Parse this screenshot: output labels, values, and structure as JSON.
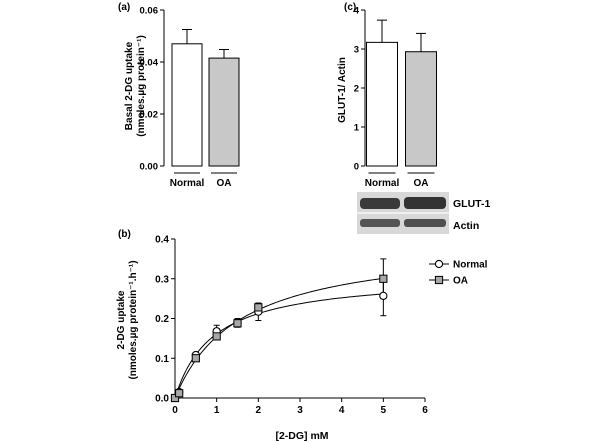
{
  "chart_data": [
    {
      "panel": "(a)",
      "type": "bar",
      "ylabel_line1": "Basal 2-DG uptake",
      "ylabel_line2": "(nmoles.µg protein⁻¹)",
      "yticks": [
        "0.00",
        "0.02",
        "0.04",
        "0.06"
      ],
      "ylim": [
        0,
        0.06
      ],
      "categories": [
        "Normal",
        "OA"
      ],
      "values": [
        0.047,
        0.0415
      ],
      "errors": [
        0.0055,
        0.0033
      ],
      "colors": [
        "#ffffff",
        "#c8c8c8"
      ]
    },
    {
      "panel": "(c)",
      "type": "bar",
      "ylabel": "GLUT-1/ Actin",
      "yticks": [
        "0",
        "1",
        "2",
        "3",
        "4"
      ],
      "ylim": [
        0,
        4
      ],
      "categories": [
        "Normal",
        "OA"
      ],
      "values": [
        3.17,
        2.93
      ],
      "errors": [
        0.57,
        0.47
      ],
      "colors": [
        "#ffffff",
        "#c8c8c8"
      ],
      "blot_labels": [
        "GLUT-1",
        "Actin"
      ]
    },
    {
      "panel": "(b)",
      "type": "line",
      "xlabel": "[2-DG] mM",
      "ylabel_line1": "2-DG uptake",
      "ylabel_line2": "(nmoles.µg protein⁻¹.h⁻¹)",
      "xticks": [
        "0",
        "1",
        "2",
        "3",
        "4",
        "5",
        "6"
      ],
      "yticks": [
        "0.0",
        "0.1",
        "0.2",
        "0.3",
        "0.4"
      ],
      "xlim": [
        0,
        6
      ],
      "ylim": [
        0,
        0.4
      ],
      "legend_position": "right",
      "series": [
        {
          "name": "Normal",
          "marker": "circle",
          "x": [
            0,
            0.1,
            0.5,
            1,
            1.5,
            2,
            5
          ],
          "y": [
            0,
            0.015,
            0.108,
            0.168,
            0.19,
            0.217,
            0.257
          ],
          "err": [
            0,
            0.005,
            0.006,
            0.015,
            0.01,
            0.022,
            0.05
          ]
        },
        {
          "name": "OA",
          "marker": "square",
          "x": [
            0,
            0.1,
            0.5,
            1,
            1.5,
            2,
            5
          ],
          "y": [
            0,
            0.012,
            0.1,
            0.155,
            0.188,
            0.228,
            0.3
          ],
          "err": [
            0,
            0.004,
            0.006,
            0.008,
            0.01,
            0.01,
            0.05
          ]
        }
      ]
    }
  ]
}
